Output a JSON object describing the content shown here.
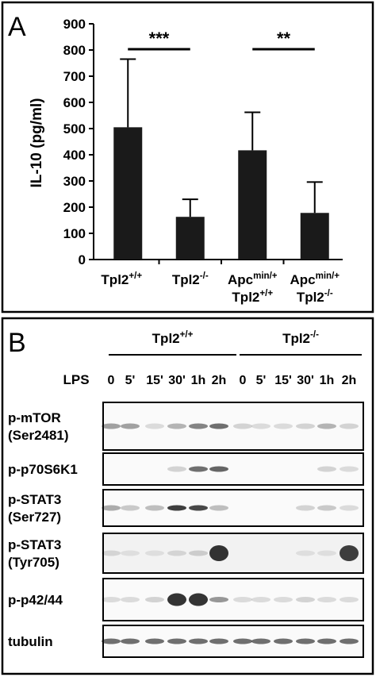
{
  "panel_a_label": "A",
  "chart_data": {
    "type": "bar",
    "ylabel": "IL-10 (pg/ml)",
    "categories": [
      [
        [
          "Tpl2",
          "+/+"
        ]
      ],
      [
        [
          "Tpl2",
          "-/-"
        ]
      ],
      [
        [
          "Apc",
          "min/+"
        ],
        [
          "Tpl2",
          "+/+"
        ]
      ],
      [
        [
          "Apc",
          "min/+"
        ],
        [
          "Tpl2",
          "-/-"
        ]
      ]
    ],
    "values": [
      505,
      163,
      417,
      178
    ],
    "errors": [
      260,
      67,
      145,
      118
    ],
    "color": "#1a1a1a",
    "ylim": [
      0,
      900
    ],
    "yticks": [
      0,
      100,
      200,
      300,
      400,
      500,
      600,
      700,
      800,
      900
    ],
    "annotations": [
      "***",
      "**"
    ]
  },
  "panel_b_label": "B",
  "blot": {
    "groups": [
      [
        "Tpl2",
        "+/+"
      ],
      [
        "Tpl2",
        "-/-"
      ]
    ],
    "treatment": "LPS",
    "timepoints": [
      "0",
      "5'",
      "15'",
      "30'",
      "1h",
      "2h"
    ],
    "rows": [
      [
        "p-mTOR",
        "(Ser2481)"
      ],
      [
        "p-p70S6K1"
      ],
      [
        "p-STAT3",
        "(Ser727)"
      ],
      [
        "p-STAT3",
        "(Tyr705)"
      ],
      [
        "p-p42/44"
      ],
      [
        "tubulin"
      ]
    ]
  }
}
